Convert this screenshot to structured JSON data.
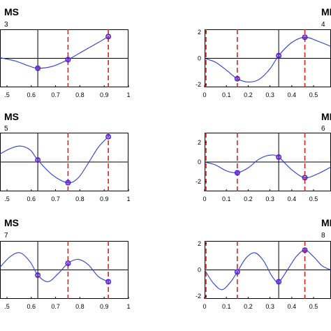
{
  "chart_data": [
    {
      "type": "line",
      "title": "MS",
      "subtitle": "3",
      "x_ticks": [
        ".5",
        "0.6",
        "0.7",
        "0.8",
        "0.9",
        "1"
      ],
      "y_ticks": [],
      "xlim": [
        0.49,
        1.0
      ],
      "ylim": [
        -2.2,
        2.2
      ],
      "vlines_black": [
        0.64
      ],
      "vlines_red_dashed": [
        0.76,
        0.92
      ],
      "series": [
        {
          "x": [
            0.49,
            0.55,
            0.6,
            0.64,
            0.7,
            0.76,
            0.82,
            0.88,
            0.92
          ],
          "y": [
            0.05,
            -0.2,
            -0.55,
            -0.75,
            -0.6,
            -0.1,
            0.55,
            1.2,
            1.65
          ]
        }
      ],
      "markers": [
        {
          "x": 0.64,
          "y": -0.75
        },
        {
          "x": 0.76,
          "y": -0.1
        },
        {
          "x": 0.92,
          "y": 1.65
        }
      ]
    },
    {
      "type": "line",
      "title": "MI",
      "subtitle": "4",
      "x_ticks": [
        "0",
        "0.1",
        "0.2",
        "0.3",
        "0.4",
        "0.5"
      ],
      "y_ticks": [
        "2",
        "0",
        "-2"
      ],
      "xlim": [
        0,
        0.58
      ],
      "ylim": [
        -2.2,
        2.2
      ],
      "vlines_black": [
        0.34
      ],
      "vlines_red_dashed": [
        0.0,
        0.15,
        0.46
      ],
      "series": [
        {
          "x": [
            0.0,
            0.05,
            0.1,
            0.15,
            0.2,
            0.25,
            0.3,
            0.34,
            0.4,
            0.46,
            0.52,
            0.58
          ],
          "y": [
            0.0,
            -0.3,
            -0.9,
            -1.55,
            -1.8,
            -1.6,
            -0.8,
            0.2,
            1.2,
            1.6,
            1.3,
            0.9
          ]
        }
      ],
      "markers": [
        {
          "x": 0.15,
          "y": -1.55
        },
        {
          "x": 0.34,
          "y": 0.2
        },
        {
          "x": 0.46,
          "y": 1.6
        }
      ]
    },
    {
      "type": "line",
      "title": "MS",
      "subtitle": "5",
      "x_ticks": [
        ".5",
        "0.6",
        "0.7",
        "0.8",
        "0.9",
        "1"
      ],
      "y_ticks": [],
      "xlim": [
        0.49,
        1.0
      ],
      "ylim": [
        -2.2,
        2.2
      ],
      "vlines_black": [
        0.64
      ],
      "vlines_red_dashed": [
        0.76,
        0.92
      ],
      "series": [
        {
          "x": [
            0.49,
            0.53,
            0.57,
            0.61,
            0.64,
            0.7,
            0.76,
            0.8,
            0.84,
            0.88,
            0.92
          ],
          "y": [
            0.6,
            1.0,
            1.2,
            0.9,
            0.15,
            -1.0,
            -1.55,
            -1.2,
            -0.1,
            1.1,
            1.9
          ]
        }
      ],
      "markers": [
        {
          "x": 0.64,
          "y": 0.15
        },
        {
          "x": 0.76,
          "y": -1.55
        },
        {
          "x": 0.92,
          "y": 1.9
        }
      ]
    },
    {
      "type": "line",
      "title": "MI",
      "subtitle": "6",
      "x_ticks": [
        "0",
        "0.1",
        "0.2",
        "0.3",
        "0.4",
        "0.5"
      ],
      "y_ticks": [
        "2",
        "0",
        "-2"
      ],
      "xlim": [
        0,
        0.58
      ],
      "ylim": [
        -3.0,
        3.0
      ],
      "vlines_black": [
        0.34
      ],
      "vlines_red_dashed": [
        0.0,
        0.15,
        0.46
      ],
      "series": [
        {
          "x": [
            0.0,
            0.05,
            0.1,
            0.15,
            0.2,
            0.25,
            0.3,
            0.34,
            0.4,
            0.46,
            0.52,
            0.58
          ],
          "y": [
            0.0,
            -0.3,
            -0.9,
            -1.1,
            -0.6,
            0.3,
            0.7,
            0.5,
            -0.8,
            -1.6,
            -1.2,
            -0.5
          ]
        }
      ],
      "markers": [
        {
          "x": 0.15,
          "y": -1.1
        },
        {
          "x": 0.34,
          "y": 0.5
        },
        {
          "x": 0.46,
          "y": -1.6
        }
      ]
    },
    {
      "type": "line",
      "title": "MS",
      "subtitle": "7",
      "x_ticks": [
        ".5",
        "0.6",
        "0.7",
        "0.8",
        "0.9",
        "1"
      ],
      "y_ticks": [],
      "xlim": [
        0.49,
        1.0
      ],
      "ylim": [
        -2.2,
        2.2
      ],
      "vlines_black": [
        0.64
      ],
      "vlines_red_dashed": [
        0.76,
        0.92
      ],
      "series": [
        {
          "x": [
            0.49,
            0.53,
            0.57,
            0.61,
            0.64,
            0.68,
            0.72,
            0.76,
            0.8,
            0.84,
            0.88,
            0.92
          ],
          "y": [
            0.2,
            1.0,
            1.3,
            0.6,
            -0.4,
            -0.9,
            -0.3,
            0.5,
            0.8,
            0.4,
            -0.5,
            -0.9
          ]
        }
      ],
      "markers": [
        {
          "x": 0.64,
          "y": -0.4
        },
        {
          "x": 0.76,
          "y": 0.5
        },
        {
          "x": 0.92,
          "y": -0.9
        }
      ]
    },
    {
      "type": "line",
      "title": "MI",
      "subtitle": "8",
      "x_ticks": [
        "0",
        "0.1",
        "0.2",
        "0.3",
        "0.4",
        "0.5"
      ],
      "y_ticks": [
        "2",
        "0",
        "-2"
      ],
      "xlim": [
        0,
        0.58
      ],
      "ylim": [
        -2.2,
        2.2
      ],
      "vlines_black": [
        0.34
      ],
      "vlines_red_dashed": [
        0.0,
        0.15,
        0.46
      ],
      "series": [
        {
          "x": [
            0.0,
            0.04,
            0.08,
            0.12,
            0.15,
            0.19,
            0.23,
            0.27,
            0.31,
            0.34,
            0.38,
            0.42,
            0.46,
            0.5,
            0.54,
            0.58
          ],
          "y": [
            0.0,
            -1.0,
            -1.5,
            -0.9,
            -0.15,
            0.9,
            1.3,
            0.7,
            -0.5,
            -0.9,
            0.0,
            1.0,
            1.5,
            1.0,
            0.3,
            0.0
          ]
        }
      ],
      "markers": [
        {
          "x": 0.15,
          "y": -0.15
        },
        {
          "x": 0.34,
          "y": -0.9
        },
        {
          "x": 0.46,
          "y": 1.5
        }
      ]
    }
  ]
}
